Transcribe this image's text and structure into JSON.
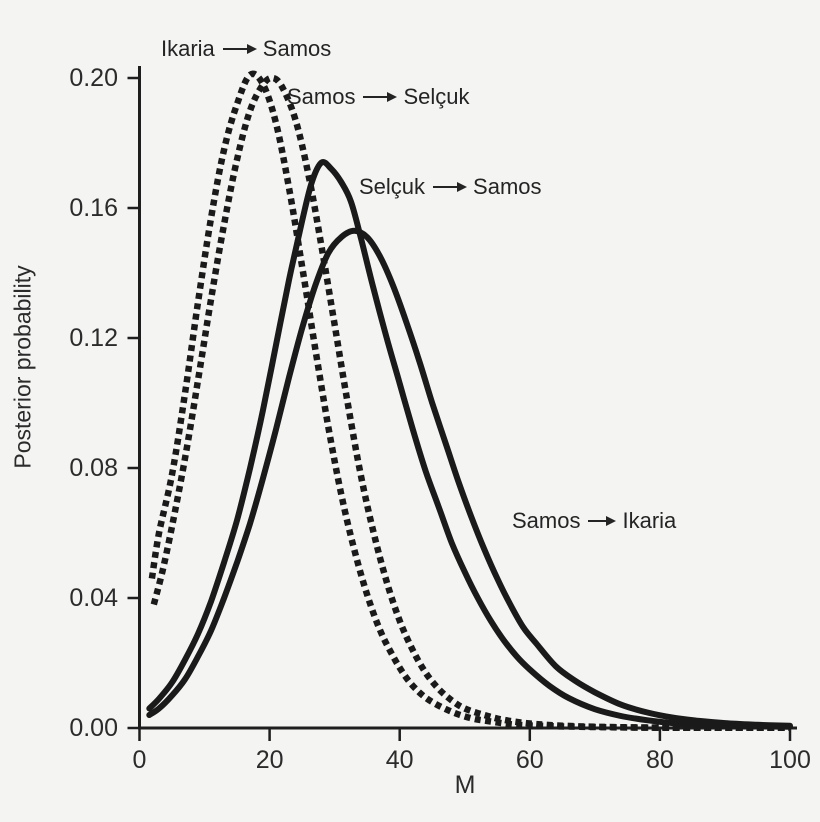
{
  "figure": {
    "background_color": "#f4f4f3",
    "ink_color": "#1a1a1a"
  },
  "chart_data": {
    "type": "line",
    "title": "",
    "xlabel": "M",
    "ylabel": "Posterior probability",
    "xlim": [
      0,
      100
    ],
    "ylim": [
      0,
      0.2
    ],
    "x_tick_labels": [
      "0",
      "20",
      "40",
      "60",
      "80",
      "100"
    ],
    "y_tick_labels": [
      "0.20",
      "0.16",
      "0.12",
      "0.08",
      "0.04",
      "0.00"
    ],
    "grid": false,
    "legend_position": "inline-annotations",
    "series": [
      {
        "name": "Ikaria → Samos",
        "style": "dotted",
        "points": [
          [
            1.9,
            0.046
          ],
          [
            3,
            0.06
          ],
          [
            5,
            0.078
          ],
          [
            7,
            0.103
          ],
          [
            9,
            0.131
          ],
          [
            11,
            0.157
          ],
          [
            13,
            0.178
          ],
          [
            15,
            0.192
          ],
          [
            17,
            0.201
          ],
          [
            19,
            0.198
          ],
          [
            21,
            0.186
          ],
          [
            23,
            0.166
          ],
          [
            25,
            0.142
          ],
          [
            27,
            0.117
          ],
          [
            29,
            0.093
          ],
          [
            31,
            0.072
          ],
          [
            33,
            0.055
          ],
          [
            35,
            0.041
          ],
          [
            37,
            0.03
          ],
          [
            39,
            0.022
          ],
          [
            41,
            0.0155
          ],
          [
            43,
            0.011
          ],
          [
            45,
            0.008
          ],
          [
            48,
            0.005
          ],
          [
            51,
            0.003
          ],
          [
            54,
            0.002
          ],
          [
            58,
            0.001
          ],
          [
            63,
            0.0006
          ],
          [
            70,
            0.0003
          ],
          [
            80,
            0.0001
          ],
          [
            100,
            0.0001
          ]
        ]
      },
      {
        "name": "Samos → Selçuk",
        "style": "dotted",
        "points": [
          [
            2.2,
            0.038
          ],
          [
            3.5,
            0.048
          ],
          [
            5,
            0.062
          ],
          [
            7,
            0.083
          ],
          [
            9,
            0.107
          ],
          [
            11,
            0.132
          ],
          [
            13,
            0.155
          ],
          [
            15,
            0.175
          ],
          [
            17,
            0.19
          ],
          [
            19,
            0.198
          ],
          [
            20.5,
            0.2
          ],
          [
            22,
            0.197
          ],
          [
            24,
            0.187
          ],
          [
            26,
            0.17
          ],
          [
            28,
            0.148
          ],
          [
            30,
            0.124
          ],
          [
            32,
            0.1
          ],
          [
            34,
            0.078
          ],
          [
            36,
            0.06
          ],
          [
            38,
            0.045
          ],
          [
            40,
            0.033
          ],
          [
            42,
            0.024
          ],
          [
            44,
            0.017
          ],
          [
            46,
            0.012
          ],
          [
            48,
            0.0085
          ],
          [
            50,
            0.006
          ],
          [
            53,
            0.004
          ],
          [
            56,
            0.0025
          ],
          [
            60,
            0.0014
          ],
          [
            65,
            0.0007
          ],
          [
            72,
            0.0003
          ],
          [
            82,
            0.0001
          ],
          [
            100,
            0.0001
          ]
        ]
      },
      {
        "name": "Selçuk → Samos",
        "style": "solid",
        "points": [
          [
            1.5,
            0.006
          ],
          [
            3,
            0.009
          ],
          [
            5,
            0.014
          ],
          [
            7,
            0.021
          ],
          [
            9,
            0.029
          ],
          [
            11,
            0.039
          ],
          [
            13,
            0.051
          ],
          [
            15,
            0.064
          ],
          [
            17,
            0.08
          ],
          [
            19,
            0.098
          ],
          [
            21,
            0.118
          ],
          [
            23,
            0.138
          ],
          [
            25,
            0.156
          ],
          [
            26.5,
            0.168
          ],
          [
            28,
            0.174
          ],
          [
            29.5,
            0.172
          ],
          [
            31,
            0.168
          ],
          [
            32.5,
            0.162
          ],
          [
            34,
            0.151
          ],
          [
            36,
            0.135
          ],
          [
            38,
            0.12
          ],
          [
            40,
            0.106
          ],
          [
            42,
            0.092
          ],
          [
            44,
            0.079
          ],
          [
            46,
            0.068
          ],
          [
            48,
            0.057
          ],
          [
            50,
            0.048
          ],
          [
            52,
            0.04
          ],
          [
            54,
            0.033
          ],
          [
            56,
            0.027
          ],
          [
            58,
            0.022
          ],
          [
            60,
            0.018
          ],
          [
            63,
            0.013
          ],
          [
            66,
            0.0092
          ],
          [
            70,
            0.0058
          ],
          [
            74,
            0.0037
          ],
          [
            78,
            0.0024
          ],
          [
            82,
            0.0015
          ],
          [
            86,
            0.001
          ],
          [
            90,
            0.0007
          ],
          [
            95,
            0.0005
          ],
          [
            100,
            0.0004
          ]
        ]
      },
      {
        "name": "Samos → Ikaria",
        "style": "solid",
        "points": [
          [
            1.5,
            0.004
          ],
          [
            3,
            0.006
          ],
          [
            5,
            0.01
          ],
          [
            7,
            0.015
          ],
          [
            9,
            0.022
          ],
          [
            11,
            0.03
          ],
          [
            13,
            0.04
          ],
          [
            15,
            0.051
          ],
          [
            17,
            0.063
          ],
          [
            19,
            0.077
          ],
          [
            21,
            0.092
          ],
          [
            23,
            0.108
          ],
          [
            25,
            0.123
          ],
          [
            27,
            0.136
          ],
          [
            29,
            0.146
          ],
          [
            31,
            0.151
          ],
          [
            33,
            0.153
          ],
          [
            35,
            0.151
          ],
          [
            37,
            0.145
          ],
          [
            39,
            0.136
          ],
          [
            41,
            0.125
          ],
          [
            43,
            0.113
          ],
          [
            45,
            0.1
          ],
          [
            47,
            0.088
          ],
          [
            49,
            0.076
          ],
          [
            51,
            0.065
          ],
          [
            53,
            0.055
          ],
          [
            55,
            0.046
          ],
          [
            57,
            0.038
          ],
          [
            59,
            0.031
          ],
          [
            61,
            0.026
          ],
          [
            64,
            0.019
          ],
          [
            67,
            0.0145
          ],
          [
            70,
            0.011
          ],
          [
            74,
            0.0072
          ],
          [
            78,
            0.0048
          ],
          [
            82,
            0.0032
          ],
          [
            86,
            0.0022
          ],
          [
            90,
            0.0015
          ],
          [
            95,
            0.001
          ],
          [
            100,
            0.0007
          ]
        ]
      }
    ],
    "annotations": [
      {
        "from": "Ikaria",
        "to": "Samos"
      },
      {
        "from": "Samos",
        "to": "Selçuk"
      },
      {
        "from": "Selçuk",
        "to": "Samos"
      },
      {
        "from": "Samos",
        "to": "Ikaria"
      }
    ]
  }
}
